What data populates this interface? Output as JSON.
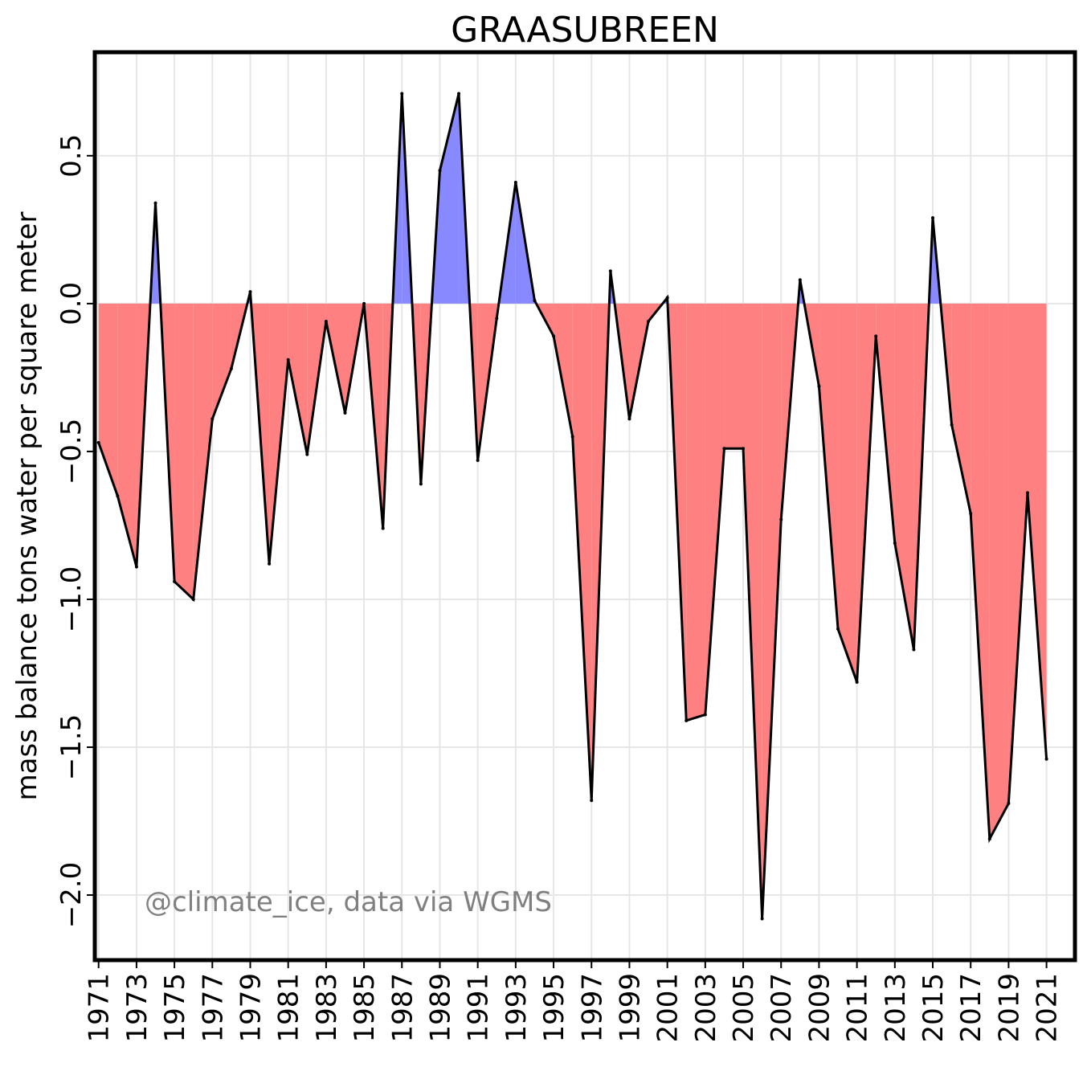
{
  "chart_data": {
    "type": "area",
    "title": "GRAASUBREEN",
    "xlabel": "",
    "ylabel": "mass balance tons water per square meter",
    "annotation": "@climate_ice, data via WGMS",
    "xlim": [
      1970.8,
      2022.5
    ],
    "ylim": [
      -2.22,
      0.85
    ],
    "yticks": [
      -2.0,
      -1.5,
      -1.0,
      -0.5,
      0.0,
      0.5
    ],
    "ytick_labels": [
      "−2.0",
      "−1.5",
      "−1.0",
      "−0.5",
      "0.0",
      "0.5"
    ],
    "xticks": [
      1971,
      1973,
      1975,
      1977,
      1979,
      1981,
      1983,
      1985,
      1987,
      1989,
      1991,
      1993,
      1995,
      1997,
      1999,
      2001,
      2003,
      2005,
      2007,
      2009,
      2011,
      2013,
      2015,
      2017,
      2019,
      2021
    ],
    "xtick_labels": [
      "1971",
      "1973",
      "1975",
      "1977",
      "1979",
      "1981",
      "1983",
      "1985",
      "1987",
      "1989",
      "1991",
      "1993",
      "1995",
      "1997",
      "1999",
      "2001",
      "2003",
      "2005",
      "2007",
      "2009",
      "2011",
      "2013",
      "2015",
      "2017",
      "2019",
      "2021"
    ],
    "grid": true,
    "colors": {
      "positive": "#8888ff",
      "negative": "#ff8080",
      "line": "#000000",
      "grid": "#e6e6e6"
    },
    "x": [
      1971,
      1972,
      1973,
      1974,
      1975,
      1976,
      1977,
      1978,
      1979,
      1980,
      1981,
      1982,
      1983,
      1984,
      1985,
      1986,
      1987,
      1988,
      1989,
      1990,
      1991,
      1992,
      1993,
      1994,
      1995,
      1996,
      1997,
      1998,
      1999,
      2000,
      2001,
      2002,
      2003,
      2004,
      2005,
      2006,
      2007,
      2008,
      2009,
      2010,
      2011,
      2012,
      2013,
      2014,
      2015,
      2016,
      2017,
      2018,
      2019,
      2020,
      2021
    ],
    "values": [
      -0.47,
      -0.65,
      -0.89,
      0.34,
      -0.94,
      -1.0,
      -0.39,
      -0.22,
      0.04,
      -0.88,
      -0.19,
      -0.51,
      -0.06,
      -0.37,
      0.0,
      -0.76,
      0.71,
      -0.61,
      0.45,
      0.71,
      -0.53,
      -0.05,
      0.41,
      0.01,
      -0.11,
      -0.45,
      -1.68,
      0.11,
      -0.39,
      -0.06,
      0.02,
      -1.41,
      -1.39,
      -0.49,
      -0.49,
      -2.08,
      -0.73,
      0.08,
      -0.28,
      -1.1,
      -1.28,
      -0.11,
      -0.81,
      -1.17,
      0.29,
      -0.41,
      -0.71,
      -1.81,
      -1.69,
      -0.64,
      -1.54
    ]
  }
}
